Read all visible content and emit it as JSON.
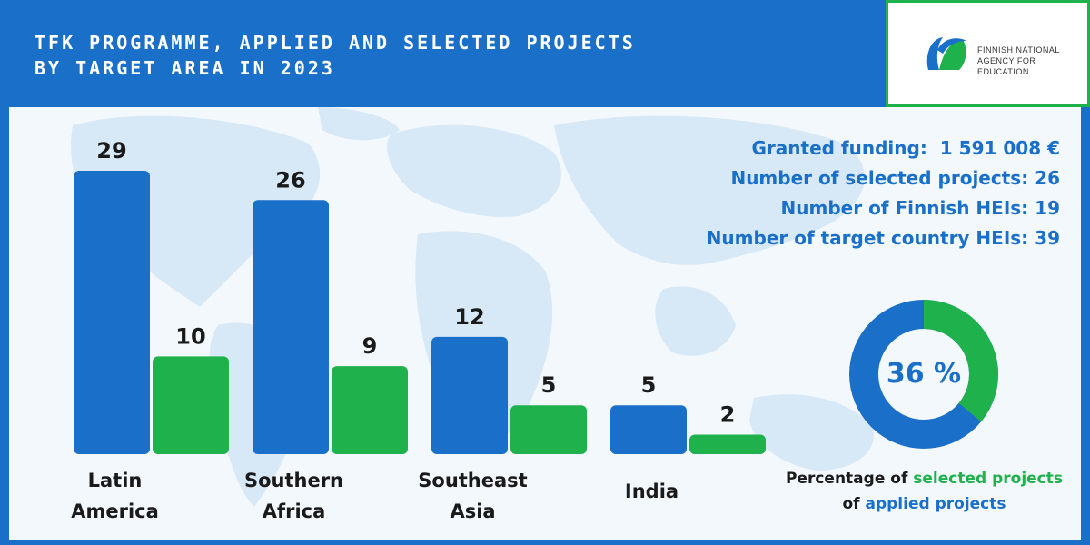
{
  "header": {
    "title_line1": "TFK PROGRAMME, APPLIED AND SELECTED PROJECTS",
    "title_line2": "BY TARGET AREA IN 2023"
  },
  "logo": {
    "line1": "FINNISH NATIONAL",
    "line2": "AGENCY FOR EDUCATION",
    "icon": "finnish-national-agency-for-education-logo"
  },
  "colors": {
    "applied": "#1a70c9",
    "selected": "#1fb14b",
    "background": "#1a70c9",
    "panel": "#f3f8fd"
  },
  "chart_data": {
    "type": "bar",
    "categories": [
      [
        "Latin",
        "America"
      ],
      [
        "Southern",
        "Africa"
      ],
      [
        "Southeast",
        "Asia"
      ],
      [
        "India"
      ]
    ],
    "series": [
      {
        "values": [
          29,
          26,
          12,
          5
        ],
        "color": "#1a70c9"
      },
      {
        "values": [
          10,
          9,
          5,
          2
        ],
        "color": "#1fb14b"
      }
    ],
    "ylim": [
      0,
      29
    ],
    "grid": false
  },
  "stats": {
    "funding_label": "Granted funding:",
    "funding_value": "1 591 008 €",
    "selected_label": "Number of selected projects:",
    "selected_value": "26",
    "finnish_heis_label": "Number of Finnish HEIs:",
    "finnish_heis_value": "19",
    "target_heis_label": "Number of target country HEIs:",
    "target_heis_value": "39"
  },
  "donut": {
    "percent": 36,
    "label": "36 %",
    "caption_part1": "Percentage of ",
    "caption_highlight1": "selected projects",
    "caption_part2": "of ",
    "caption_highlight2": "applied projects"
  }
}
